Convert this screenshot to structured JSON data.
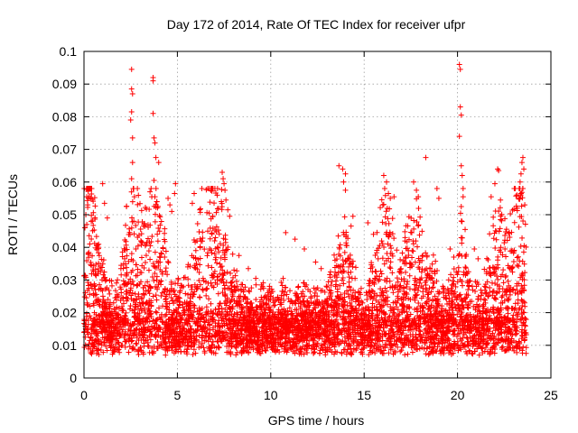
{
  "chart_data": {
    "type": "scatter",
    "title": "Day 172 of 2014, Rate Of TEC Index for receiver ufpr",
    "xlabel": "GPS time / hours",
    "ylabel": "ROTI / TECUs",
    "xlim": [
      0,
      25
    ],
    "ylim": [
      0,
      0.1
    ],
    "xticks": [
      0,
      5,
      10,
      15,
      20,
      25
    ],
    "yticks": [
      0,
      0.01,
      0.02,
      0.03,
      0.04,
      0.05,
      0.06,
      0.07,
      0.08,
      0.09,
      0.1
    ],
    "xtick_labels": [
      "0",
      "5",
      "10",
      "15",
      "20",
      "25"
    ],
    "ytick_labels": [
      "0",
      "0.01",
      "0.02",
      "0.03",
      "0.04",
      "0.05",
      "0.06",
      "0.07",
      "0.08",
      "0.09",
      "0.1"
    ],
    "grid": true,
    "marker": "+",
    "marker_color": "#ff0000",
    "data_range_x": [
      0,
      23.7
    ],
    "series": [
      {
        "name": "ROTI",
        "points": [
          [
            2.55,
            0.0945
          ],
          [
            2.55,
            0.0885
          ],
          [
            2.6,
            0.087
          ],
          [
            2.55,
            0.0815
          ],
          [
            2.5,
            0.079
          ],
          [
            2.6,
            0.0735
          ],
          [
            2.6,
            0.066
          ],
          [
            2.55,
            0.061
          ],
          [
            2.65,
            0.058
          ],
          [
            2.7,
            0.0555
          ],
          [
            3.7,
            0.092
          ],
          [
            3.7,
            0.091
          ],
          [
            3.7,
            0.081
          ],
          [
            3.75,
            0.0735
          ],
          [
            3.8,
            0.072
          ],
          [
            3.85,
            0.0675
          ],
          [
            4.0,
            0.066
          ],
          [
            3.75,
            0.0605
          ],
          [
            3.8,
            0.0555
          ],
          [
            3.9,
            0.054
          ],
          [
            20.1,
            0.096
          ],
          [
            20.15,
            0.0945
          ],
          [
            20.15,
            0.083
          ],
          [
            20.2,
            0.0805
          ],
          [
            20.1,
            0.074
          ],
          [
            20.2,
            0.065
          ],
          [
            20.25,
            0.062
          ],
          [
            20.3,
            0.058
          ],
          [
            20.3,
            0.0555
          ],
          [
            20.2,
            0.0525
          ],
          [
            18.3,
            0.0675
          ],
          [
            13.65,
            0.065
          ],
          [
            13.85,
            0.064
          ],
          [
            14.0,
            0.0625
          ],
          [
            13.9,
            0.06
          ],
          [
            14.0,
            0.0575
          ],
          [
            7.4,
            0.063
          ],
          [
            7.45,
            0.061
          ],
          [
            7.5,
            0.0595
          ],
          [
            7.55,
            0.0575
          ],
          [
            7.6,
            0.0545
          ],
          [
            7.7,
            0.0515
          ],
          [
            7.8,
            0.0495
          ],
          [
            16.05,
            0.062
          ],
          [
            16.2,
            0.06
          ],
          [
            16.1,
            0.058
          ],
          [
            16.3,
            0.0565
          ],
          [
            16.4,
            0.055
          ],
          [
            16.0,
            0.053
          ],
          [
            16.6,
            0.0555
          ],
          [
            17.65,
            0.06
          ],
          [
            17.8,
            0.0575
          ],
          [
            17.9,
            0.0555
          ],
          [
            18.9,
            0.058
          ],
          [
            19.0,
            0.055
          ],
          [
            22.15,
            0.064
          ],
          [
            22.2,
            0.0635
          ],
          [
            22.0,
            0.0595
          ],
          [
            21.8,
            0.0555
          ],
          [
            22.3,
            0.0545
          ],
          [
            23.5,
            0.0675
          ],
          [
            23.45,
            0.066
          ],
          [
            23.55,
            0.064
          ],
          [
            23.4,
            0.0625
          ],
          [
            23.35,
            0.06
          ],
          [
            23.5,
            0.058
          ],
          [
            23.4,
            0.0565
          ],
          [
            23.3,
            0.055
          ],
          [
            23.6,
            0.053
          ],
          [
            23.2,
            0.052
          ],
          [
            0.15,
            0.0555
          ],
          [
            0.2,
            0.053
          ],
          [
            0.1,
            0.05
          ],
          [
            0.15,
            0.047
          ],
          [
            0.05,
            0.046
          ],
          [
            1.0,
            0.0595
          ],
          [
            1.1,
            0.0535
          ],
          [
            1.25,
            0.049
          ],
          [
            4.9,
            0.0595
          ],
          [
            4.85,
            0.0565
          ],
          [
            4.5,
            0.055
          ],
          [
            4.6,
            0.053
          ],
          [
            4.7,
            0.051
          ],
          [
            5.9,
            0.0565
          ],
          [
            5.8,
            0.0535
          ],
          [
            6.2,
            0.0515
          ],
          [
            6.7,
            0.0505
          ],
          [
            6.9,
            0.0495
          ],
          [
            10.8,
            0.0445
          ],
          [
            11.3,
            0.0425
          ],
          [
            11.8,
            0.0395
          ],
          [
            12.4,
            0.0355
          ],
          [
            12.7,
            0.0335
          ],
          [
            13.2,
            0.0325
          ],
          [
            14.4,
            0.0495
          ],
          [
            14.3,
            0.0465
          ],
          [
            15.2,
            0.0475
          ],
          [
            15.5,
            0.044
          ],
          [
            19.6,
            0.0395
          ],
          [
            19.8,
            0.037
          ],
          [
            20.9,
            0.0395
          ],
          [
            21.1,
            0.0365
          ],
          [
            8.3,
            0.0375
          ],
          [
            8.8,
            0.0335
          ],
          [
            9.2,
            0.0305
          ],
          [
            9.5,
            0.0285
          ],
          [
            10.1,
            0.0265
          ],
          [
            10.3,
            0.024
          ]
        ]
      }
    ]
  }
}
